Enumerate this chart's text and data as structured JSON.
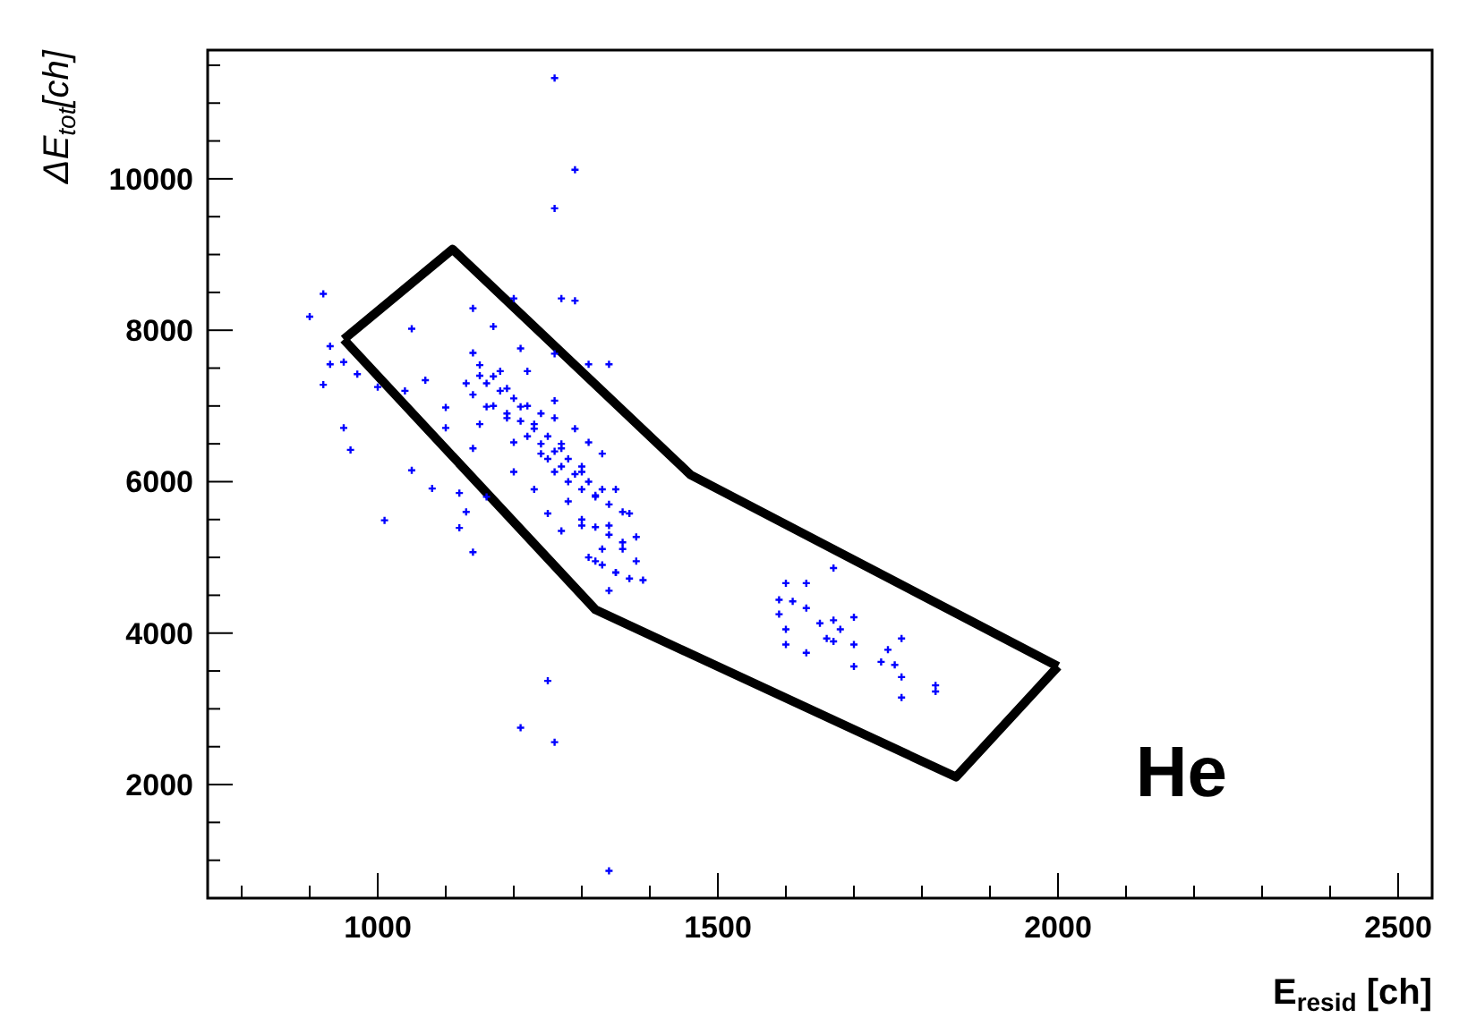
{
  "chart_data": {
    "type": "scatter",
    "xlabel": "E$_{resid}$ [ch]",
    "ylabel": "ΔE$_{tot}$[ch]",
    "annotations": [
      "He"
    ],
    "xlim": [
      750,
      2550
    ],
    "ylim": [
      500,
      11700
    ],
    "xticks": [
      {
        "value": 800,
        "label": null
      },
      {
        "value": 900,
        "label": null
      },
      1000,
      {
        "value": 1100,
        "label": null
      },
      {
        "value": 1200,
        "label": null
      },
      {
        "value": 1300,
        "label": null
      },
      {
        "value": 1400,
        "label": null
      },
      1500,
      {
        "value": 1600,
        "label": null
      },
      {
        "value": 1700,
        "label": null
      },
      {
        "value": 1800,
        "label": null
      },
      {
        "value": 1900,
        "label": null
      },
      2000,
      {
        "value": 2100,
        "label": null
      },
      {
        "value": 2200,
        "label": null
      },
      {
        "value": 2300,
        "label": null
      },
      {
        "value": 2400,
        "label": null
      },
      2500
    ],
    "yticks": [
      {
        "value": 1000,
        "label": null
      },
      {
        "value": 1500,
        "label": null
      },
      2000,
      {
        "value": 2500,
        "label": null
      },
      {
        "value": 3000,
        "label": null
      },
      {
        "value": 3500,
        "label": null
      },
      4000,
      {
        "value": 4500,
        "label": null
      },
      {
        "value": 5000,
        "label": null
      },
      {
        "value": 5500,
        "label": null
      },
      6000,
      {
        "value": 6500,
        "label": null
      },
      {
        "value": 7000,
        "label": null
      },
      {
        "value": 7500,
        "label": null
      },
      8000,
      {
        "value": 8500,
        "label": null
      },
      {
        "value": 9000,
        "label": null
      },
      {
        "value": 9500,
        "label": null
      },
      10000,
      {
        "value": 10500,
        "label": null
      },
      {
        "value": 11000,
        "label": null
      },
      {
        "value": 11500,
        "label": null
      }
    ],
    "grid": false,
    "legend": false,
    "series": [
      {
        "color": "#0000ff",
        "marker": "cross",
        "x": [
          1260,
          1290,
          1260,
          1270,
          1290,
          1200,
          920,
          900,
          1050,
          930,
          930,
          950,
          920,
          970,
          1000,
          1040,
          1070,
          950,
          960,
          1050,
          1010,
          1080,
          1120,
          1130,
          1120,
          1140,
          1250,
          1210,
          1260,
          1340,
          1310,
          1340,
          1140,
          1170,
          1210,
          1260,
          1100,
          1100,
          1160,
          1140,
          1150,
          1140,
          1170,
          1190,
          1160,
          1190,
          1210,
          1230,
          1260,
          1200,
          1240,
          1270,
          1310,
          1260,
          1300,
          1330,
          1230,
          1280,
          1320,
          1350,
          1300,
          1340,
          1370,
          1330,
          1360,
          1380,
          1350,
          1370,
          1340,
          1390,
          1140,
          1180,
          1150,
          1200,
          1250,
          1270,
          1320,
          1380,
          1260,
          1220,
          1600,
          1630,
          1670,
          1590,
          1590,
          1610,
          1630,
          1600,
          1600,
          1630,
          1650,
          1670,
          1680,
          1700,
          1670,
          1700,
          1700,
          1740,
          1750,
          1770,
          1760,
          1770,
          1770,
          1820,
          1820,
          1660,
          1160,
          1180,
          1200,
          1220,
          1240,
          1170,
          1190,
          1210,
          1230,
          1250,
          1270,
          1220,
          1240,
          1260,
          1280,
          1300,
          1250,
          1270,
          1290,
          1310,
          1330,
          1280,
          1300,
          1320,
          1340,
          1360,
          1300,
          1320,
          1340,
          1360,
          1310,
          1330,
          1350,
          1150,
          1130,
          1290
        ],
        "values": [
          11330,
          10120,
          9610,
          8420,
          8390,
          8420,
          8480,
          8180,
          8020,
          7790,
          7550,
          7580,
          7280,
          7420,
          7250,
          7200,
          7340,
          6710,
          6420,
          6150,
          5490,
          5910,
          5850,
          5600,
          5390,
          5070,
          3370,
          2750,
          2560,
          860,
          7550,
          7550,
          8290,
          8050,
          7760,
          7690,
          6980,
          6710,
          5800,
          6440,
          7540,
          7150,
          7390,
          7230,
          6990,
          6840,
          6990,
          6760,
          6840,
          6520,
          6370,
          6440,
          6520,
          6130,
          6130,
          6370,
          5900,
          5740,
          5820,
          5900,
          5420,
          5420,
          5580,
          5110,
          5110,
          4950,
          4800,
          4720,
          4560,
          4700,
          7700,
          7460,
          6760,
          6130,
          5580,
          5350,
          4950,
          5270,
          7070,
          7460,
          4660,
          4660,
          4860,
          4440,
          4250,
          4420,
          4330,
          4050,
          3850,
          3740,
          4130,
          4170,
          4050,
          4210,
          3890,
          3850,
          3560,
          3620,
          3780,
          3930,
          3580,
          3420,
          3150,
          3310,
          3230,
          3930,
          7300,
          7200,
          7100,
          7000,
          6900,
          7000,
          6900,
          6800,
          6700,
          6600,
          6500,
          6600,
          6500,
          6400,
          6300,
          6200,
          6300,
          6200,
          6100,
          6000,
          5900,
          6000,
          5900,
          5800,
          5700,
          5600,
          5500,
          5400,
          5300,
          5200,
          5000,
          4900,
          4800,
          7400,
          7300,
          6700
        ]
      },
      {
        "type": "line",
        "color": "#000000",
        "marker": "none",
        "line_style": "solid",
        "x": [
          950,
          1110,
          1460,
          2000
        ],
        "values": [
          7880,
          9070,
          6090,
          3560
        ]
      },
      {
        "type": "line",
        "color": "#000000",
        "marker": "none",
        "line_style": "solid",
        "x": [
          950,
          1320,
          1850,
          2000
        ],
        "values": [
          7880,
          4310,
          2100,
          3560
        ]
      }
    ]
  }
}
